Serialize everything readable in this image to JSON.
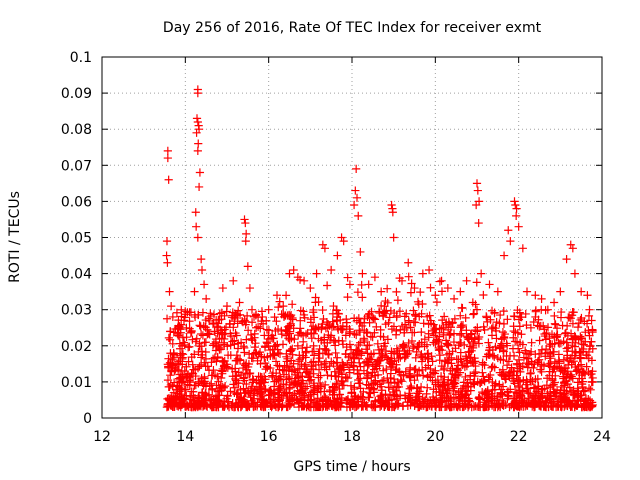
{
  "chart_data": {
    "type": "scatter",
    "title": "Day 256 of 2016, Rate Of TEC Index for receiver exmt",
    "xlabel": "GPS time / hours",
    "ylabel": "ROTI / TECUs",
    "xlim": [
      12,
      24
    ],
    "ylim": [
      0,
      0.1
    ],
    "x_ticks": [
      "12",
      "14",
      "16",
      "18",
      "20",
      "22",
      "24"
    ],
    "y_ticks": [
      "0",
      "0.01",
      "0.02",
      "0.03",
      "0.04",
      "0.05",
      "0.06",
      "0.07",
      "0.08",
      "0.09",
      "0.1"
    ],
    "grid": true,
    "marker": "+",
    "color": "#ff0000",
    "series": [
      {
        "name": "ROTI",
        "points": [
          [
            13.58,
            0.074
          ],
          [
            13.58,
            0.072
          ],
          [
            13.6,
            0.066
          ],
          [
            13.56,
            0.049
          ],
          [
            13.55,
            0.045
          ],
          [
            13.57,
            0.043
          ],
          [
            13.62,
            0.035
          ],
          [
            13.66,
            0.031
          ],
          [
            13.7,
            0.028
          ],
          [
            13.64,
            0.024
          ],
          [
            13.72,
            0.018
          ],
          [
            13.8,
            0.015
          ],
          [
            14.3,
            0.091
          ],
          [
            14.3,
            0.09
          ],
          [
            14.28,
            0.083
          ],
          [
            14.3,
            0.082
          ],
          [
            14.32,
            0.081
          ],
          [
            14.33,
            0.08
          ],
          [
            14.27,
            0.079
          ],
          [
            14.31,
            0.076
          ],
          [
            14.3,
            0.074
          ],
          [
            14.35,
            0.068
          ],
          [
            14.33,
            0.064
          ],
          [
            14.25,
            0.057
          ],
          [
            14.26,
            0.053
          ],
          [
            14.3,
            0.05
          ],
          [
            14.38,
            0.044
          ],
          [
            14.4,
            0.041
          ],
          [
            14.45,
            0.037
          ],
          [
            14.5,
            0.033
          ],
          [
            14.22,
            0.035
          ],
          [
            14.6,
            0.029
          ],
          [
            14.7,
            0.024
          ],
          [
            14.8,
            0.02
          ],
          [
            14.9,
            0.036
          ],
          [
            15.0,
            0.031
          ],
          [
            15.15,
            0.038
          ],
          [
            15.3,
            0.032
          ],
          [
            15.42,
            0.055
          ],
          [
            15.44,
            0.054
          ],
          [
            15.46,
            0.051
          ],
          [
            15.45,
            0.049
          ],
          [
            15.5,
            0.042
          ],
          [
            15.55,
            0.036
          ],
          [
            15.6,
            0.03
          ],
          [
            15.7,
            0.025
          ],
          [
            15.85,
            0.028
          ],
          [
            16.0,
            0.03
          ],
          [
            16.1,
            0.022
          ],
          [
            16.2,
            0.034
          ],
          [
            16.35,
            0.031
          ],
          [
            16.5,
            0.04
          ],
          [
            16.6,
            0.041
          ],
          [
            16.7,
            0.039
          ],
          [
            16.85,
            0.038
          ],
          [
            17.0,
            0.036
          ],
          [
            17.15,
            0.04
          ],
          [
            17.3,
            0.048
          ],
          [
            17.35,
            0.047
          ],
          [
            17.5,
            0.041
          ],
          [
            17.65,
            0.045
          ],
          [
            17.75,
            0.05
          ],
          [
            17.8,
            0.049
          ],
          [
            17.95,
            0.037
          ],
          [
            18.05,
            0.059
          ],
          [
            18.1,
            0.069
          ],
          [
            18.08,
            0.063
          ],
          [
            18.12,
            0.061
          ],
          [
            18.15,
            0.056
          ],
          [
            18.2,
            0.046
          ],
          [
            18.25,
            0.04
          ],
          [
            18.4,
            0.037
          ],
          [
            18.55,
            0.039
          ],
          [
            18.7,
            0.035
          ],
          [
            18.95,
            0.059
          ],
          [
            18.97,
            0.058
          ],
          [
            18.98,
            0.057
          ],
          [
            19.0,
            0.05
          ],
          [
            19.2,
            0.038
          ],
          [
            19.35,
            0.043
          ],
          [
            19.5,
            0.036
          ],
          [
            19.7,
            0.04
          ],
          [
            19.85,
            0.041
          ],
          [
            20.0,
            0.034
          ],
          [
            20.15,
            0.038
          ],
          [
            20.3,
            0.036
          ],
          [
            20.45,
            0.033
          ],
          [
            20.6,
            0.035
          ],
          [
            20.75,
            0.038
          ],
          [
            20.9,
            0.032
          ],
          [
            21.0,
            0.065
          ],
          [
            21.02,
            0.063
          ],
          [
            21.05,
            0.06
          ],
          [
            20.98,
            0.059
          ],
          [
            21.04,
            0.054
          ],
          [
            21.1,
            0.04
          ],
          [
            21.3,
            0.037
          ],
          [
            21.5,
            0.035
          ],
          [
            21.65,
            0.045
          ],
          [
            21.75,
            0.052
          ],
          [
            21.8,
            0.049
          ],
          [
            21.9,
            0.06
          ],
          [
            21.92,
            0.059
          ],
          [
            21.95,
            0.058
          ],
          [
            21.94,
            0.056
          ],
          [
            22.0,
            0.053
          ],
          [
            22.1,
            0.047
          ],
          [
            22.2,
            0.035
          ],
          [
            22.4,
            0.034
          ],
          [
            22.55,
            0.033
          ],
          [
            22.7,
            0.03
          ],
          [
            22.85,
            0.032
          ],
          [
            23.0,
            0.035
          ],
          [
            23.15,
            0.044
          ],
          [
            23.25,
            0.048
          ],
          [
            23.3,
            0.047
          ],
          [
            23.35,
            0.04
          ],
          [
            23.5,
            0.035
          ],
          [
            23.65,
            0.034
          ],
          [
            23.7,
            0.03
          ],
          [
            23.75,
            0.027
          ]
        ]
      }
    ],
    "background_band": {
      "description": "dense cloud of ROTI points between roughly 0.003 and 0.03 TECUs across the observation window",
      "x_range": [
        13.55,
        23.8
      ],
      "y_range": [
        0.003,
        0.03
      ]
    }
  }
}
